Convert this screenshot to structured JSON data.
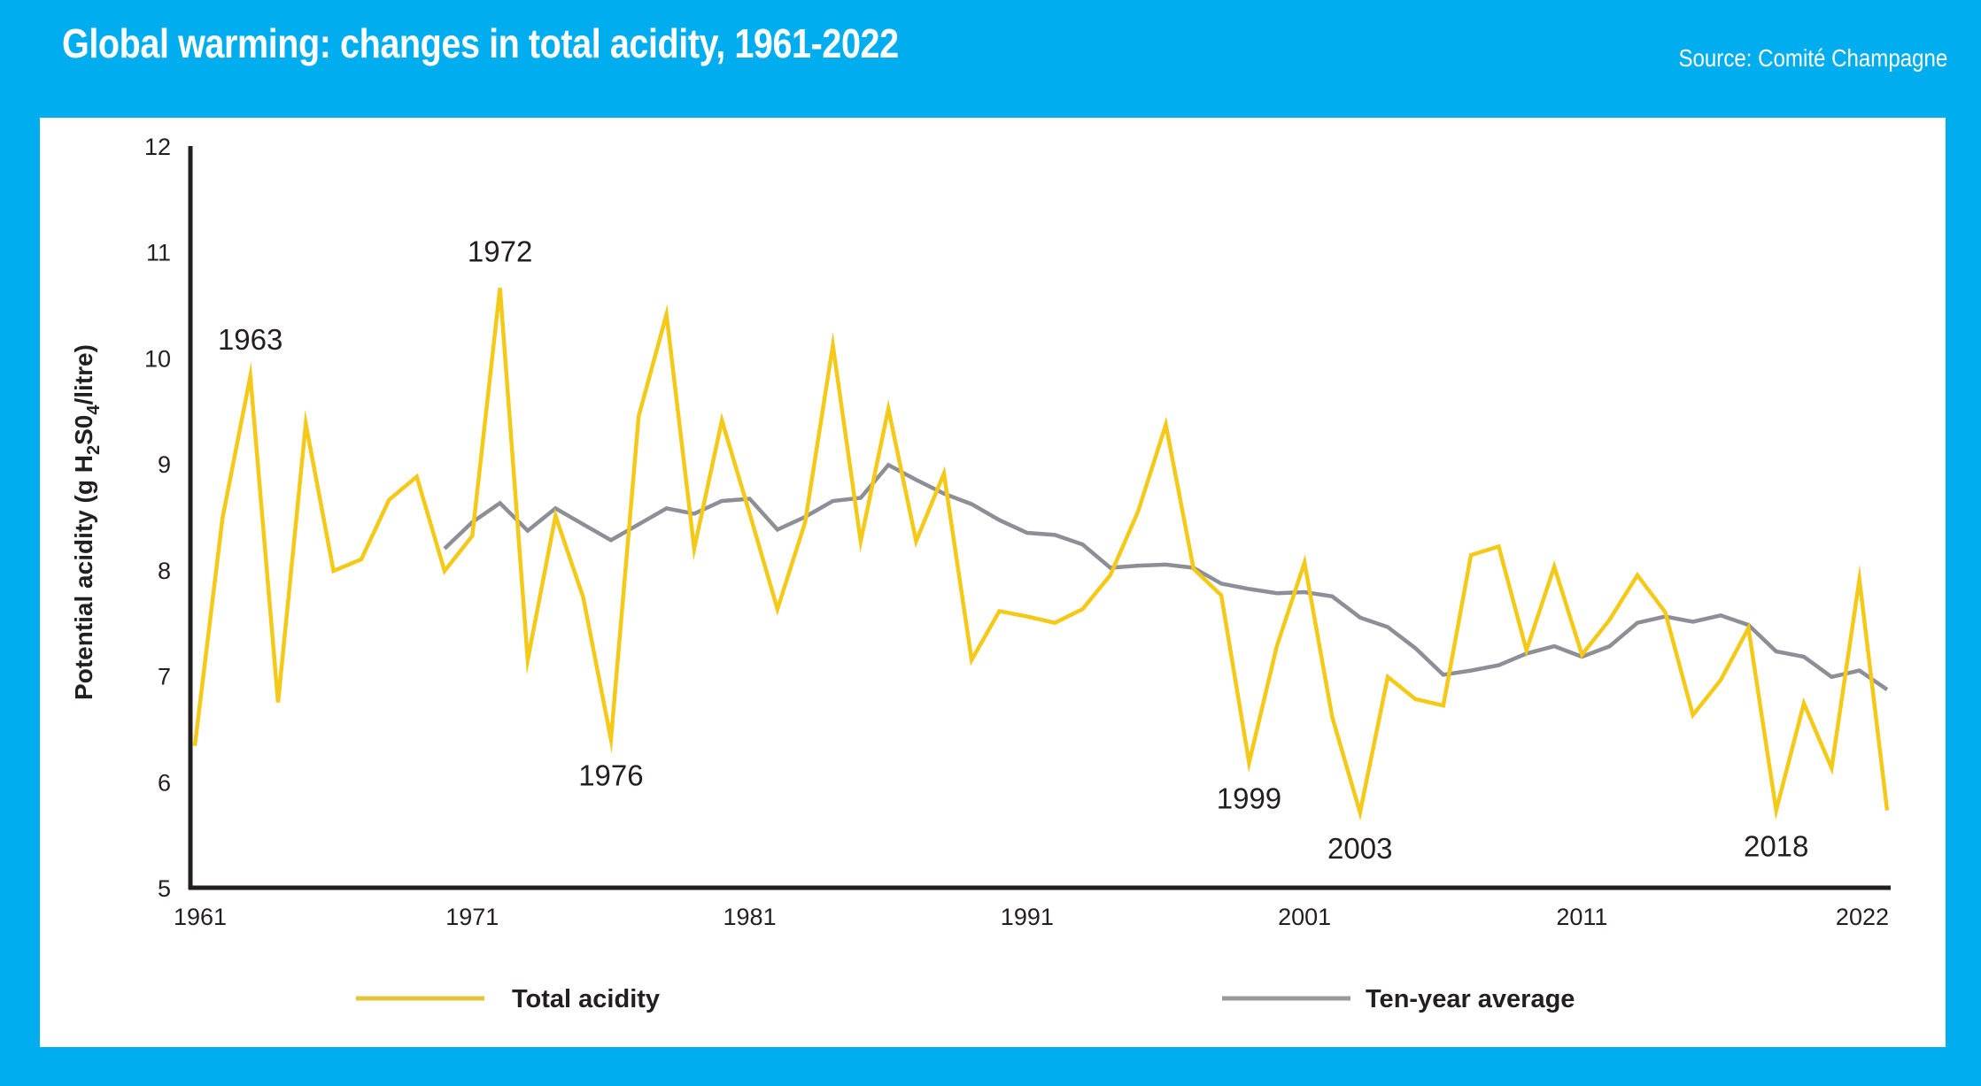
{
  "header": {
    "title": "Global warming: changes in total acidity, 1961-2022",
    "source": "Source: Comité Champagne"
  },
  "colors": {
    "background": "#00adef",
    "panel": "#ffffff",
    "total_acidity": "#f4c918",
    "ten_year_average": "#8e8e96",
    "axis": "#231f20"
  },
  "chart_data": {
    "type": "line",
    "title": "Global warming: changes in total acidity, 1961-2022",
    "xlabel": "",
    "ylabel": {
      "prefix": "Potential acidity (g H",
      "sub1": "2",
      "mid": "S0",
      "sub2": "4",
      "suffix": "/litre)"
    },
    "xlim": [
      1961,
      2022
    ],
    "ylim": [
      5,
      12
    ],
    "grid": false,
    "x_ticks": [
      "1961",
      "1971",
      "1981",
      "1991",
      "2001",
      "2011",
      "2022"
    ],
    "x_tick_values": [
      1961,
      1971,
      1981,
      1991,
      2001,
      2011,
      2022
    ],
    "y_ticks": [
      "5",
      "6",
      "7",
      "8",
      "9",
      "10",
      "11",
      "12"
    ],
    "y_tick_values": [
      5,
      6,
      7,
      8,
      9,
      10,
      11,
      12
    ],
    "legend": {
      "placement": "bottom",
      "entries": [
        "Total acidity",
        "Ten-year average"
      ]
    },
    "annotations": [
      {
        "label": "1963",
        "year": 1963,
        "position": "above"
      },
      {
        "label": "1972",
        "year": 1972,
        "position": "above"
      },
      {
        "label": "1976",
        "year": 1976,
        "position": "below"
      },
      {
        "label": "1999",
        "year": 1999,
        "position": "below"
      },
      {
        "label": "2003",
        "year": 2003,
        "position": "below"
      },
      {
        "label": "2018",
        "year": 2018,
        "position": "below"
      }
    ],
    "series": [
      {
        "name": "Total acidity",
        "start_year": 1961,
        "values": [
          6.34,
          8.49,
          9.83,
          6.75,
          9.38,
          7.99,
          8.1,
          8.66,
          8.88,
          7.99,
          8.32,
          10.66,
          7.15,
          8.51,
          7.74,
          6.4,
          9.45,
          10.41,
          8.2,
          9.41,
          8.53,
          7.63,
          8.45,
          10.12,
          8.27,
          9.52,
          8.27,
          8.91,
          7.15,
          7.61,
          7.56,
          7.5,
          7.63,
          7.95,
          8.55,
          9.37,
          8.01,
          7.76,
          6.18,
          7.28,
          8.07,
          6.61,
          5.71,
          6.99,
          6.78,
          6.72,
          8.14,
          8.22,
          7.24,
          8.03,
          7.2,
          7.53,
          7.95,
          7.6,
          6.63,
          6.96,
          7.45,
          5.73,
          6.74,
          6.13,
          7.91,
          5.73
        ]
      },
      {
        "name": "Ten-year average",
        "start_year": 1970,
        "values": [
          8.2,
          8.45,
          8.63,
          8.37,
          8.58,
          8.43,
          8.28,
          8.43,
          8.58,
          8.53,
          8.65,
          8.67,
          8.38,
          8.5,
          8.65,
          8.68,
          8.99,
          8.85,
          8.72,
          8.62,
          8.47,
          8.35,
          8.33,
          8.24,
          8.02,
          8.04,
          8.05,
          8.02,
          7.87,
          7.82,
          7.78,
          7.79,
          7.75,
          7.55,
          7.46,
          7.26,
          7.01,
          7.05,
          7.1,
          7.21,
          7.28,
          7.18,
          7.28,
          7.5,
          7.56,
          7.51,
          7.57,
          7.48,
          7.23,
          7.18,
          6.99,
          7.05,
          6.87
        ]
      }
    ]
  }
}
